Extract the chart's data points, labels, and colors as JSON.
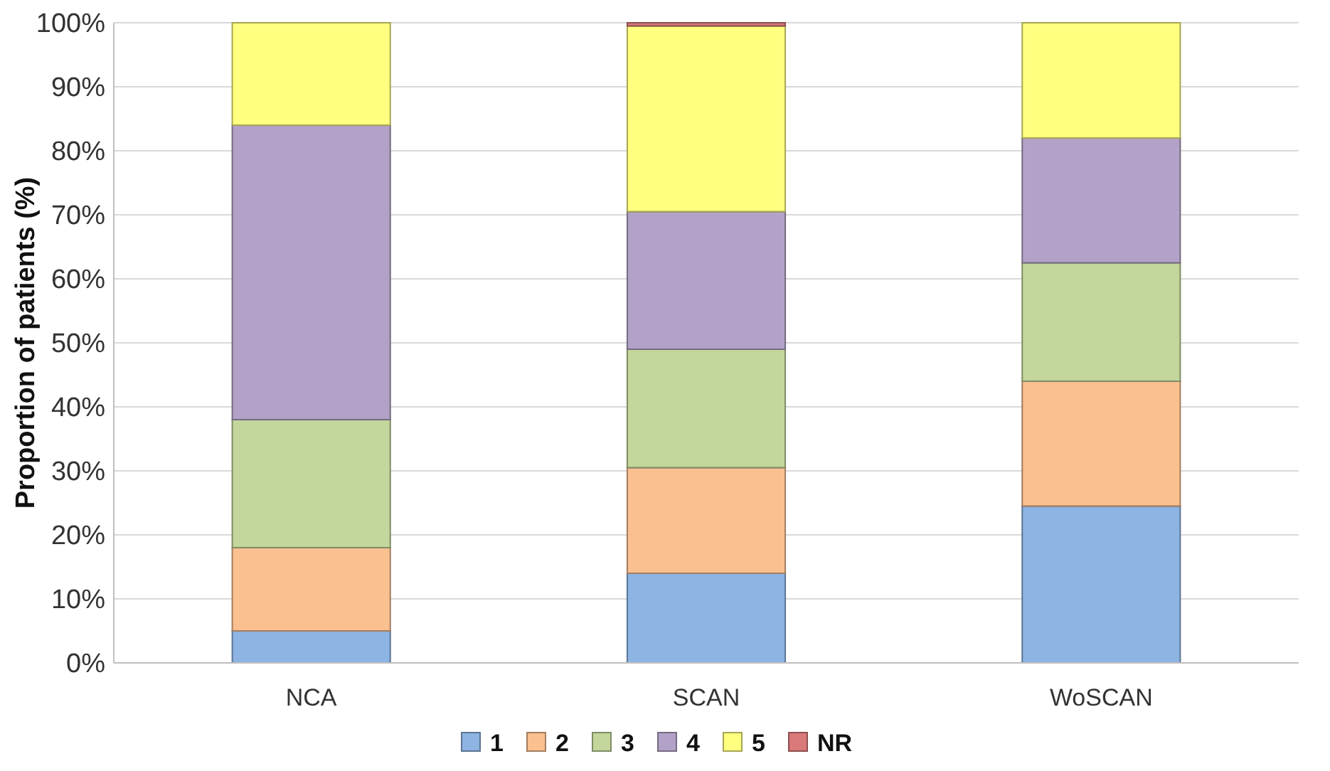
{
  "chart_data": {
    "type": "bar",
    "stacked": true,
    "categories": [
      "NCA",
      "SCAN",
      "WoSCAN"
    ],
    "ylabel": "Proportion of patients (%)",
    "series": [
      {
        "name": "1",
        "color": "#8db4e2",
        "values": [
          5,
          14,
          24.5
        ]
      },
      {
        "name": "2",
        "color": "#fac090",
        "values": [
          13,
          16.5,
          19.5
        ]
      },
      {
        "name": "3",
        "color": "#c3d69b",
        "values": [
          20,
          18.5,
          18.5
        ]
      },
      {
        "name": "4",
        "color": "#b3a2c7",
        "values": [
          46,
          21.5,
          19.5
        ]
      },
      {
        "name": "5",
        "color": "#ffff80",
        "values": [
          16,
          29,
          18
        ]
      },
      {
        "name": "NR",
        "color": "#d9797a",
        "values": [
          0,
          0.5,
          0
        ]
      }
    ],
    "ylim": [
      0,
      100
    ],
    "yticks": [
      {
        "value": 0,
        "label": "0%"
      },
      {
        "value": 10,
        "label": "10%"
      },
      {
        "value": 20,
        "label": "20%"
      },
      {
        "value": 30,
        "label": "30%"
      },
      {
        "value": 40,
        "label": "40%"
      },
      {
        "value": 50,
        "label": "50%"
      },
      {
        "value": 60,
        "label": "60%"
      },
      {
        "value": 70,
        "label": "70%"
      },
      {
        "value": 80,
        "label": "80%"
      },
      {
        "value": 90,
        "label": "90%"
      },
      {
        "value": 100,
        "label": "100%"
      }
    ],
    "grid": "y",
    "legend": "bottom"
  }
}
